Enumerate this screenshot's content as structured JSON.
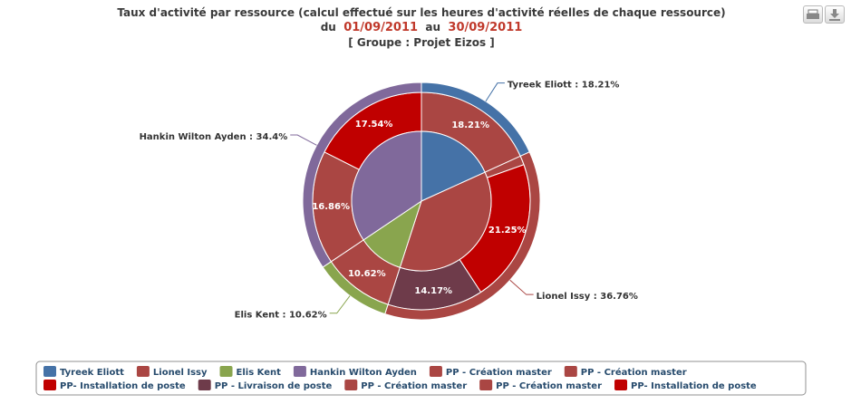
{
  "chart_data": {
    "type": "pie",
    "title": "Taux d'activité par ressource (calcul effectué sur les heures d'activité réelles de chaque ressource)",
    "period": {
      "from_label": "du",
      "start": "01/09/2011",
      "to_label": "au",
      "end": "30/09/2011"
    },
    "subtitle": "[ Groupe : Projet Eizos ]",
    "resources": {
      "categories": [
        "Tyreek Eliott",
        "Lionel Issy",
        "Elis Kent",
        "Hankin Wilton Ayden"
      ],
      "values": [
        18.21,
        36.76,
        10.62,
        34.4
      ],
      "colors": [
        "#4572a7",
        "#aa4643",
        "#89a54e",
        "#80699b"
      ],
      "value_labels": [
        "Tyreek Eliott : 18.21%",
        "Lionel Issy : 36.76%",
        "Elis Kent : 10.62%",
        "Hankin Wilton Ayden : 34.4%"
      ]
    },
    "tasks": {
      "categories": [
        "PP - Création master",
        "PP - Création master",
        "PP- Installation de poste",
        "PP - Livraison de poste",
        "PP - Création master",
        "PP - Création master",
        "PP- Installation de poste"
      ],
      "values": [
        18.21,
        1.34,
        21.25,
        14.17,
        10.62,
        16.86,
        17.54
      ],
      "colors": [
        "#aa4643",
        "#aa4643",
        "#c00000",
        "#6e3b4a",
        "#aa4643",
        "#aa4643",
        "#c00000"
      ],
      "value_labels": [
        "18.21%",
        null,
        "21.25%",
        "14.17%",
        "10.62%",
        "16.86%",
        "17.54%"
      ]
    }
  }
}
